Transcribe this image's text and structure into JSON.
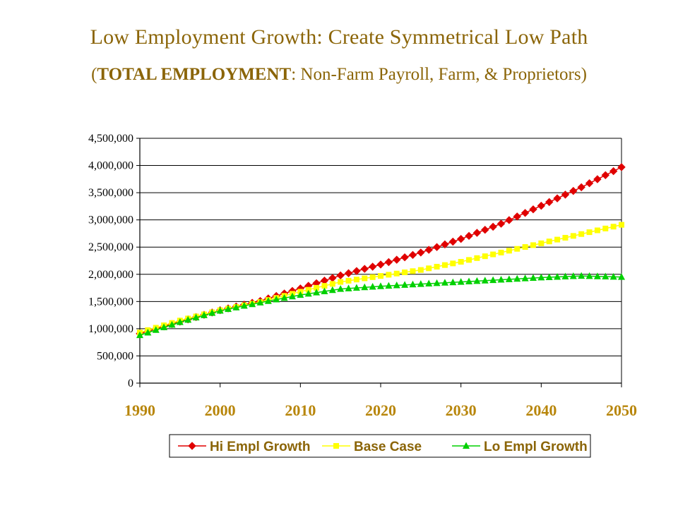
{
  "header": {
    "title": "Low Employment Growth: Create Symmetrical Low Path",
    "subtitle_open": "(",
    "subtitle_bold": "TOTAL EMPLOYMENT",
    "subtitle_rest": ": Non-Farm Payroll, Farm, & Proprietors)"
  },
  "chart_data": {
    "type": "line",
    "title": "",
    "xlabel": "",
    "ylabel": "",
    "xlim": [
      1990,
      2050
    ],
    "ylim": [
      0,
      4500000
    ],
    "grid": true,
    "legend_position": "bottom",
    "x_ticks": [
      1990,
      2000,
      2010,
      2020,
      2030,
      2040,
      2050
    ],
    "x_tick_labels": [
      "1990",
      "2000",
      "2010",
      "2020",
      "2030",
      "2040",
      "2050"
    ],
    "y_ticks": [
      0,
      500000,
      1000000,
      1500000,
      2000000,
      2500000,
      3000000,
      3500000,
      4000000,
      4500000
    ],
    "y_tick_labels": [
      "0",
      "500,000",
      "1,000,000",
      "1,500,000",
      "2,000,000",
      "2,500,000",
      "3,000,000",
      "3,500,000",
      "4,000,000",
      "4,500,000"
    ],
    "x": [
      1990,
      1995,
      2000,
      2005,
      2010,
      2015,
      2020,
      2025,
      2030,
      2035,
      2040,
      2045,
      2050
    ],
    "series": [
      {
        "name": "Hi Empl Growth",
        "color": "#E00000",
        "marker": "diamond",
        "values": [
          910000,
          1130000,
          1340000,
          1510000,
          1740000,
          1980000,
          2180000,
          2400000,
          2650000,
          2930000,
          3260000,
          3600000,
          3970000
        ]
      },
      {
        "name": "Base Case",
        "color": "#FFFF00",
        "marker": "square",
        "values": [
          930000,
          1150000,
          1340000,
          1490000,
          1680000,
          1860000,
          1970000,
          2080000,
          2230000,
          2400000,
          2570000,
          2740000,
          2910000
        ]
      },
      {
        "name": "Lo Empl Growth",
        "color": "#00D000",
        "marker": "triangle",
        "values": [
          880000,
          1120000,
          1330000,
          1480000,
          1620000,
          1730000,
          1780000,
          1820000,
          1860000,
          1900000,
          1940000,
          1970000,
          1950000
        ]
      }
    ]
  }
}
